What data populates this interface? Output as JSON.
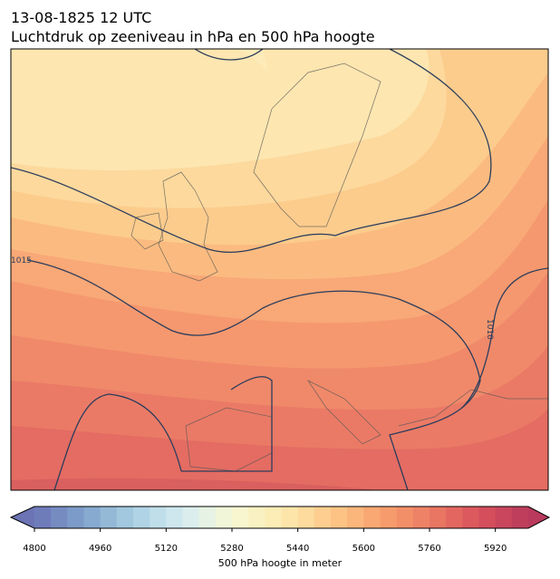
{
  "header": {
    "title": "13-08-1825 12 UTC",
    "subtitle": "Luchtdruk op zeeniveau in hPa en 500 hPa hoogte"
  },
  "contour_labels": [
    "1015",
    "1010"
  ],
  "colorbar": {
    "label": "500 hPa hoogte in meter",
    "range": [
      4800,
      6000
    ],
    "step": 40,
    "ticks": [
      4800,
      4960,
      5120,
      5280,
      5440,
      5600,
      5760,
      5920
    ],
    "colors": [
      "#6c74b6",
      "#7fa3cc",
      "#a8cfe2",
      "#d6ecf2",
      "#f6f8d4",
      "#fdeab0",
      "#fdc98a",
      "#f8a26e",
      "#ec7c64",
      "#d9525c",
      "#b93a5c"
    ]
  }
}
